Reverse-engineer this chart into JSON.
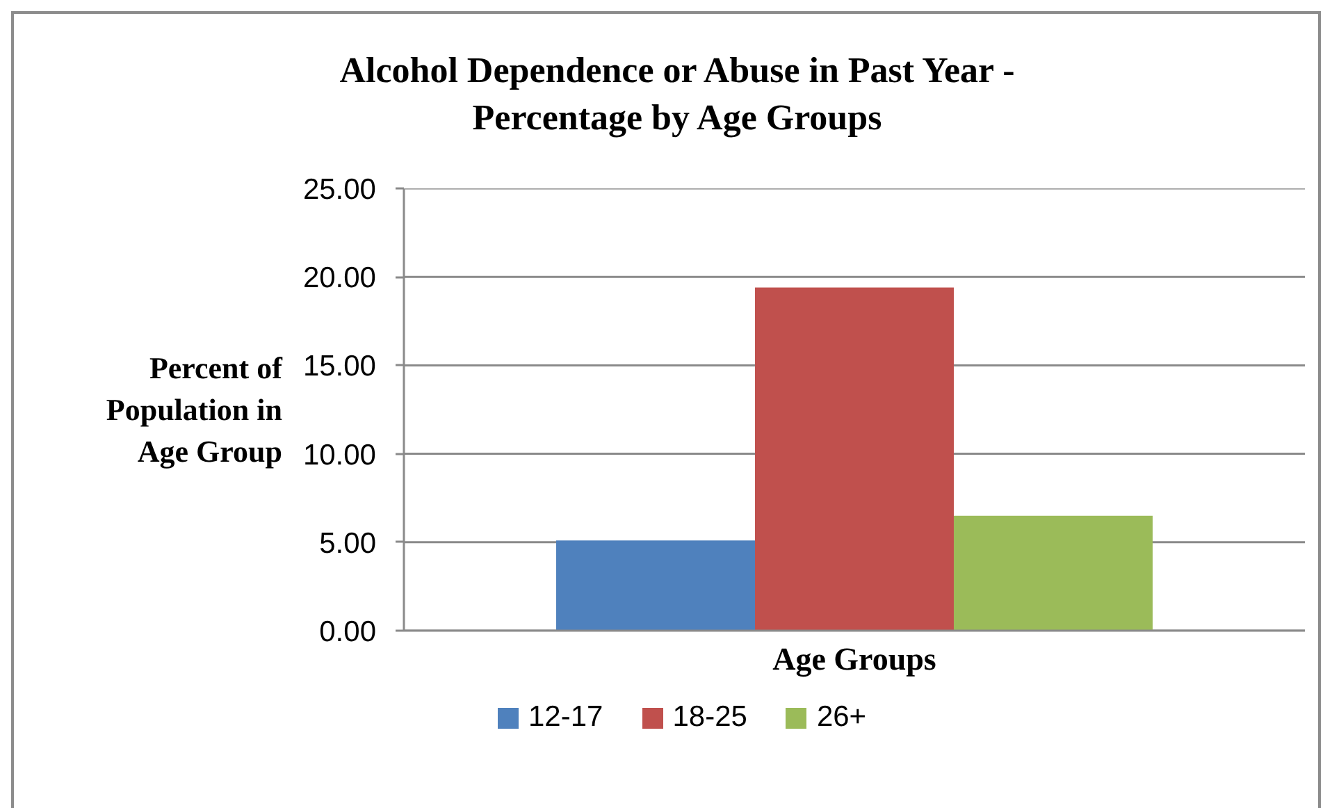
{
  "chart_data": {
    "type": "bar",
    "title": "Alcohol Dependence or Abuse in Past Year - Percentage by Age Groups",
    "xlabel": "Age Groups",
    "ylabel": "Percent of Population in Age Group",
    "categories": [
      null
    ],
    "series": [
      {
        "name": "12-17",
        "color": "#4f81bd",
        "values": [
          5.1
        ]
      },
      {
        "name": "18-25",
        "color": "#c0504d",
        "values": [
          19.4
        ]
      },
      {
        "name": "26+",
        "color": "#9bbb59",
        "values": [
          6.5
        ]
      }
    ],
    "ylim": [
      0,
      25
    ],
    "yticks": [
      {
        "value": 0,
        "label": "0.00"
      },
      {
        "value": 5,
        "label": "5.00"
      },
      {
        "value": 10,
        "label": "10.00"
      },
      {
        "value": 15,
        "label": "15.00"
      },
      {
        "value": 20,
        "label": "20.00"
      },
      {
        "value": 25,
        "label": "25.00"
      }
    ],
    "grid": "y",
    "legend": "bottom"
  }
}
